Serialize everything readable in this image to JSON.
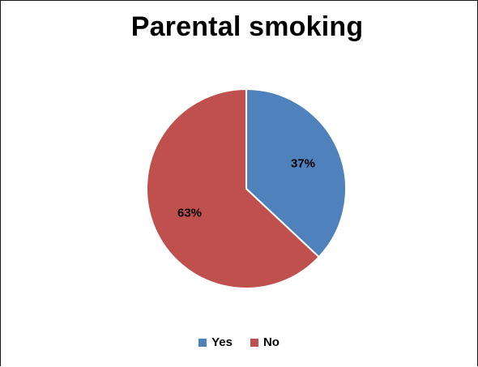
{
  "chart_data": {
    "type": "pie",
    "title": "Parental smoking",
    "categories": [
      "Yes",
      "No"
    ],
    "values": [
      37,
      63
    ],
    "labels": [
      "37%",
      "63%"
    ],
    "colors": [
      "#4F81BD",
      "#C0504D"
    ],
    "legend_position": "bottom"
  }
}
